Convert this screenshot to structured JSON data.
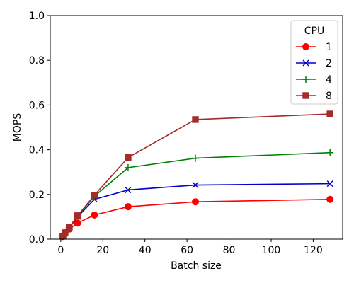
{
  "chart_data": {
    "type": "line",
    "xlabel": "Batch size",
    "ylabel": "MOPS",
    "xlim": [
      -5,
      134
    ],
    "ylim": [
      0.0,
      1.0
    ],
    "xticks": [
      0,
      20,
      40,
      60,
      80,
      100,
      120
    ],
    "yticks": [
      0.0,
      0.2,
      0.4,
      0.6,
      0.8,
      1.0
    ],
    "xtick_labels": [
      "0",
      "20",
      "40",
      "60",
      "80",
      "100",
      "120"
    ],
    "ytick_labels": [
      "0.0",
      "0.2",
      "0.4",
      "0.6",
      "0.8",
      "1.0"
    ],
    "grid": false,
    "legend": {
      "title": "CPU",
      "position": "top-right"
    },
    "x": [
      1,
      2,
      4,
      8,
      16,
      32,
      64,
      128
    ],
    "series": [
      {
        "name": "1",
        "color": "#ff0000",
        "marker": "circle",
        "values": [
          0.012,
          0.025,
          0.045,
          0.072,
          0.108,
          0.145,
          0.167,
          0.178
        ]
      },
      {
        "name": "2",
        "color": "#0000cc",
        "marker": "x",
        "values": [
          0.013,
          0.028,
          0.05,
          0.1,
          0.178,
          0.22,
          0.242,
          0.248
        ]
      },
      {
        "name": "4",
        "color": "#008000",
        "marker": "plus",
        "values": [
          0.013,
          0.029,
          0.052,
          0.103,
          0.192,
          0.32,
          0.362,
          0.387
        ]
      },
      {
        "name": "8",
        "color": "#a52a2a",
        "marker": "square",
        "values": [
          0.013,
          0.029,
          0.053,
          0.105,
          0.197,
          0.365,
          0.535,
          0.56
        ]
      }
    ]
  }
}
